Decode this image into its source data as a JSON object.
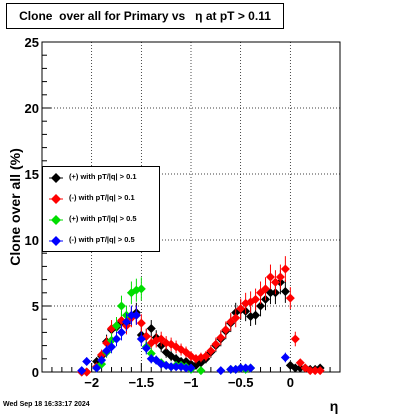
{
  "title": "Clone  over all for Primary vs   η at pT > 0.11",
  "timestamp": "Wed Sep 18 16:33:17 2024",
  "chart_data": {
    "type": "scatter",
    "title": "Clone  over all for Primary vs   η at pT > 0.11",
    "xlabel": "η",
    "ylabel": "Clone  over all (%)",
    "xlim": [
      -2.5,
      0.5
    ],
    "ylim": [
      0,
      25
    ],
    "grid": true,
    "legend_placement": "left-middle",
    "x_ticks": [
      -2,
      -1.5,
      -1,
      -0.5,
      0
    ],
    "x_tick_labels": [
      "−2",
      "−1.5",
      "−1",
      "−0.5",
      "0"
    ],
    "y_ticks": [
      0,
      5,
      10,
      15,
      20,
      25
    ],
    "y_tick_labels": [
      "0",
      "5",
      "10",
      "15",
      "20",
      "25"
    ],
    "series": [
      {
        "name": "(+) with pT/|q| > 0.1",
        "color": "#000000",
        "points": [
          [
            -2.1,
            0
          ],
          [
            -2.05,
            0
          ],
          [
            -1.95,
            0.8
          ],
          [
            -1.9,
            1.2
          ],
          [
            -1.85,
            2.3
          ],
          [
            -1.8,
            3.2
          ],
          [
            -1.75,
            3.4
          ],
          [
            -1.7,
            3.8
          ],
          [
            -1.65,
            3.7
          ],
          [
            -1.6,
            4.2
          ],
          [
            -1.55,
            4.5
          ],
          [
            -1.5,
            2.8
          ],
          [
            -1.45,
            2.7
          ],
          [
            -1.4,
            3.3
          ],
          [
            -1.35,
            2.6
          ],
          [
            -1.3,
            2.0
          ],
          [
            -1.25,
            1.5
          ],
          [
            -1.2,
            1.2
          ],
          [
            -1.15,
            1.0
          ],
          [
            -1.1,
            0.8
          ],
          [
            -1.05,
            0.8
          ],
          [
            -1.0,
            0.6
          ],
          [
            -0.95,
            0.5
          ],
          [
            -0.9,
            0.7
          ],
          [
            -0.85,
            1.0
          ],
          [
            -0.8,
            1.5
          ],
          [
            -0.75,
            2.0
          ],
          [
            -0.7,
            2.5
          ],
          [
            -0.65,
            3.1
          ],
          [
            -0.6,
            3.7
          ],
          [
            -0.55,
            4.5
          ],
          [
            -0.5,
            4.7
          ],
          [
            -0.45,
            4.6
          ],
          [
            -0.4,
            4.2
          ],
          [
            -0.35,
            4.3
          ],
          [
            -0.3,
            5.0
          ],
          [
            -0.25,
            5.5
          ],
          [
            -0.2,
            6.0
          ],
          [
            -0.15,
            6.0
          ],
          [
            -0.1,
            6.8
          ],
          [
            -0.05,
            6.1
          ],
          [
            0.0,
            0.5
          ],
          [
            0.05,
            0.3
          ],
          [
            0.1,
            0.3
          ],
          [
            0.15,
            0.3
          ],
          [
            0.2,
            0.2
          ],
          [
            0.25,
            0.2
          ],
          [
            0.3,
            0.3
          ]
        ]
      },
      {
        "name": "(-) with pT/|q| > 0.1",
        "color": "#ff0000",
        "points": [
          [
            -2.1,
            0
          ],
          [
            -2.05,
            0
          ],
          [
            -1.95,
            0.4
          ],
          [
            -1.9,
            1.3
          ],
          [
            -1.85,
            2.2
          ],
          [
            -1.8,
            3.3
          ],
          [
            -1.75,
            3.5
          ],
          [
            -1.7,
            3.9
          ],
          [
            -1.65,
            3.5
          ],
          [
            -1.6,
            4.1
          ],
          [
            -1.55,
            4.3
          ],
          [
            -1.5,
            3.7
          ],
          [
            -1.45,
            2.7
          ],
          [
            -1.4,
            2.2
          ],
          [
            -1.35,
            2.4
          ],
          [
            -1.3,
            2.5
          ],
          [
            -1.25,
            2.2
          ],
          [
            -1.2,
            2.1
          ],
          [
            -1.15,
            1.9
          ],
          [
            -1.1,
            1.7
          ],
          [
            -1.05,
            1.5
          ],
          [
            -1.0,
            1.2
          ],
          [
            -0.95,
            1.0
          ],
          [
            -0.9,
            1.1
          ],
          [
            -0.85,
            1.2
          ],
          [
            -0.8,
            1.6
          ],
          [
            -0.75,
            2.1
          ],
          [
            -0.7,
            2.6
          ],
          [
            -0.65,
            3.2
          ],
          [
            -0.6,
            3.8
          ],
          [
            -0.55,
            4.1
          ],
          [
            -0.5,
            4.8
          ],
          [
            -0.45,
            5.2
          ],
          [
            -0.4,
            5.3
          ],
          [
            -0.35,
            5.5
          ],
          [
            -0.3,
            6.0
          ],
          [
            -0.25,
            6.3
          ],
          [
            -0.2,
            7.2
          ],
          [
            -0.15,
            6.8
          ],
          [
            -0.1,
            7.2
          ],
          [
            -0.05,
            7.8
          ],
          [
            0.0,
            5.6
          ],
          [
            0.05,
            2.5
          ],
          [
            0.1,
            0.7
          ],
          [
            0.15,
            0.3
          ],
          [
            0.2,
            0.1
          ],
          [
            0.25,
            0.1
          ],
          [
            0.3,
            0.1
          ]
        ]
      },
      {
        "name": "(+) with pT/|q| > 0.5",
        "color": "#00dd00",
        "points": [
          [
            -1.95,
            0.3
          ],
          [
            -1.9,
            0.6
          ],
          [
            -1.85,
            1.5
          ],
          [
            -1.8,
            2.4
          ],
          [
            -1.75,
            3.5
          ],
          [
            -1.7,
            5.0
          ],
          [
            -1.65,
            4.3
          ],
          [
            -1.6,
            6.0
          ],
          [
            -1.55,
            6.2
          ],
          [
            -1.5,
            6.3
          ],
          [
            -1.45,
            1.9
          ],
          [
            -1.4,
            1.4
          ],
          [
            -1.35,
            0.9
          ],
          [
            -1.3,
            0.7
          ],
          [
            -1.25,
            0.5
          ],
          [
            -1.2,
            0.4
          ],
          [
            -1.15,
            0.5
          ],
          [
            -1.1,
            0.5
          ],
          [
            -1.05,
            0.4
          ],
          [
            -1.0,
            0.2
          ],
          [
            -0.9,
            0.1
          ],
          [
            -0.6,
            0.2
          ],
          [
            -0.55,
            0.2
          ],
          [
            -0.5,
            0.3
          ],
          [
            -0.45,
            0.2
          ],
          [
            -0.4,
            0.3
          ]
        ]
      },
      {
        "name": "(-) with pT/|q| > 0.5",
        "color": "#0000ff",
        "points": [
          [
            -2.1,
            0.1
          ],
          [
            -2.05,
            0.8
          ],
          [
            -1.95,
            0.3
          ],
          [
            -1.9,
            0.9
          ],
          [
            -1.85,
            1.6
          ],
          [
            -1.8,
            1.9
          ],
          [
            -1.75,
            2.5
          ],
          [
            -1.7,
            3.0
          ],
          [
            -1.65,
            3.8
          ],
          [
            -1.6,
            4.3
          ],
          [
            -1.55,
            4.3
          ],
          [
            -1.5,
            2.5
          ],
          [
            -1.45,
            1.8
          ],
          [
            -1.4,
            1.0
          ],
          [
            -1.35,
            0.9
          ],
          [
            -1.3,
            0.6
          ],
          [
            -1.25,
            0.5
          ],
          [
            -1.2,
            0.4
          ],
          [
            -1.15,
            0.4
          ],
          [
            -1.1,
            0.4
          ],
          [
            -1.05,
            0.3
          ],
          [
            -1.0,
            0.3
          ],
          [
            -0.7,
            0.1
          ],
          [
            -0.6,
            0.2
          ],
          [
            -0.55,
            0.2
          ],
          [
            -0.5,
            0.3
          ],
          [
            -0.45,
            0.3
          ],
          [
            -0.4,
            0.3
          ],
          [
            -0.05,
            1.1
          ]
        ]
      }
    ]
  }
}
